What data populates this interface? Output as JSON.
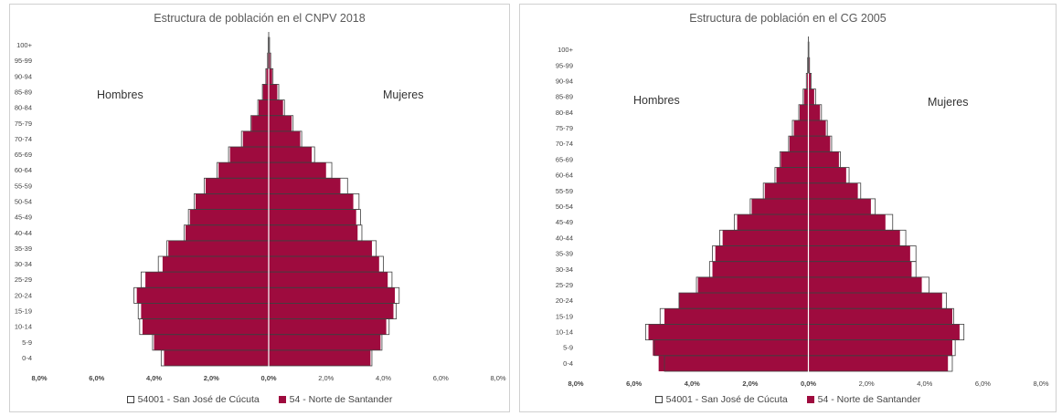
{
  "age_groups": [
    "0-4",
    "5-9",
    "10-14",
    "15-19",
    "20-24",
    "25-29",
    "30-34",
    "35-39",
    "40-44",
    "45-49",
    "50-54",
    "55-59",
    "60-64",
    "65-69",
    "70-74",
    "75-79",
    "80-84",
    "85-89",
    "90-94",
    "95-99",
    "100+"
  ],
  "x_ticks": [
    "8,0%",
    "6,0%",
    "4,0%",
    "2,0%",
    "0,0%",
    "2,0%",
    "4,0%",
    "6,0%",
    "8,0%"
  ],
  "legend": {
    "outline_label": "54001 - San José de Cúcuta",
    "fill_label": "54 - Norte de Santander"
  },
  "colors": {
    "fill": "#9e0b3e",
    "outline": "#404040",
    "center_line": "#ffffff"
  },
  "chart_data": [
    {
      "type": "bar",
      "title": "Estructura de población en el  CNPV 2018",
      "left_label": "Hombres",
      "right_label": "Mujeres",
      "xlim": [
        -8,
        8
      ],
      "categories": [
        "0-4",
        "5-9",
        "10-14",
        "15-19",
        "20-24",
        "25-29",
        "30-34",
        "35-39",
        "40-44",
        "45-49",
        "50-54",
        "55-59",
        "60-64",
        "65-69",
        "70-74",
        "75-79",
        "80-84",
        "85-89",
        "90-94",
        "95-99",
        "100+"
      ],
      "series": [
        {
          "name": "54 - Norte de Santander",
          "men": [
            3.65,
            4.0,
            4.4,
            4.45,
            4.6,
            4.3,
            3.7,
            3.5,
            2.9,
            2.75,
            2.55,
            2.2,
            1.75,
            1.35,
            0.9,
            0.6,
            0.35,
            0.2,
            0.08,
            0.03,
            0.01
          ],
          "women": [
            3.55,
            3.9,
            4.1,
            4.35,
            4.4,
            4.15,
            3.85,
            3.6,
            3.1,
            3.05,
            2.95,
            2.5,
            2.0,
            1.5,
            1.1,
            0.8,
            0.5,
            0.3,
            0.12,
            0.05,
            0.02
          ]
        },
        {
          "name": "54001 - San José de Cúcuta",
          "men": [
            3.75,
            4.05,
            4.5,
            4.55,
            4.7,
            4.45,
            3.85,
            3.55,
            2.95,
            2.8,
            2.6,
            2.25,
            1.8,
            1.4,
            0.95,
            0.62,
            0.38,
            0.22,
            0.1,
            0.04,
            0.02
          ],
          "women": [
            3.6,
            3.95,
            4.2,
            4.45,
            4.55,
            4.3,
            4.0,
            3.75,
            3.25,
            3.2,
            3.15,
            2.75,
            2.2,
            1.6,
            1.15,
            0.85,
            0.55,
            0.35,
            0.15,
            0.07,
            0.03
          ]
        }
      ]
    },
    {
      "type": "bar",
      "title": "Estructura de población en el CG 2005",
      "left_label": "Hombres",
      "right_label": "Mujeres",
      "xlim": [
        -8,
        8
      ],
      "categories": [
        "0-4",
        "5-9",
        "10-14",
        "15-19",
        "20-24",
        "25-29",
        "30-34",
        "35-39",
        "40-44",
        "45-49",
        "50-54",
        "55-59",
        "60-64",
        "65-69",
        "70-74",
        "75-79",
        "80-84",
        "85-89",
        "90-94",
        "95-99",
        "100+"
      ],
      "series": [
        {
          "name": "54 - Norte de Santander",
          "men": [
            5.15,
            5.35,
            5.5,
            4.95,
            4.45,
            3.8,
            3.3,
            3.2,
            2.95,
            2.45,
            1.95,
            1.5,
            1.1,
            0.95,
            0.65,
            0.5,
            0.3,
            0.15,
            0.05,
            0.02,
            0.01
          ],
          "women": [
            4.8,
            4.95,
            5.2,
            4.95,
            4.6,
            3.9,
            3.55,
            3.5,
            3.15,
            2.65,
            2.15,
            1.7,
            1.3,
            1.05,
            0.75,
            0.6,
            0.4,
            0.2,
            0.08,
            0.03,
            0.01
          ]
        },
        {
          "name": "54001 - San José de Cúcuta",
          "men": [
            4.95,
            5.3,
            5.6,
            5.1,
            4.45,
            3.85,
            3.4,
            3.3,
            3.05,
            2.55,
            2.0,
            1.55,
            1.15,
            0.98,
            0.68,
            0.55,
            0.33,
            0.18,
            0.07,
            0.03,
            0.01
          ],
          "women": [
            4.95,
            5.05,
            5.35,
            5.0,
            4.75,
            4.15,
            3.7,
            3.7,
            3.35,
            2.9,
            2.3,
            1.8,
            1.4,
            1.1,
            0.8,
            0.65,
            0.45,
            0.25,
            0.1,
            0.04,
            0.02
          ]
        }
      ]
    }
  ]
}
